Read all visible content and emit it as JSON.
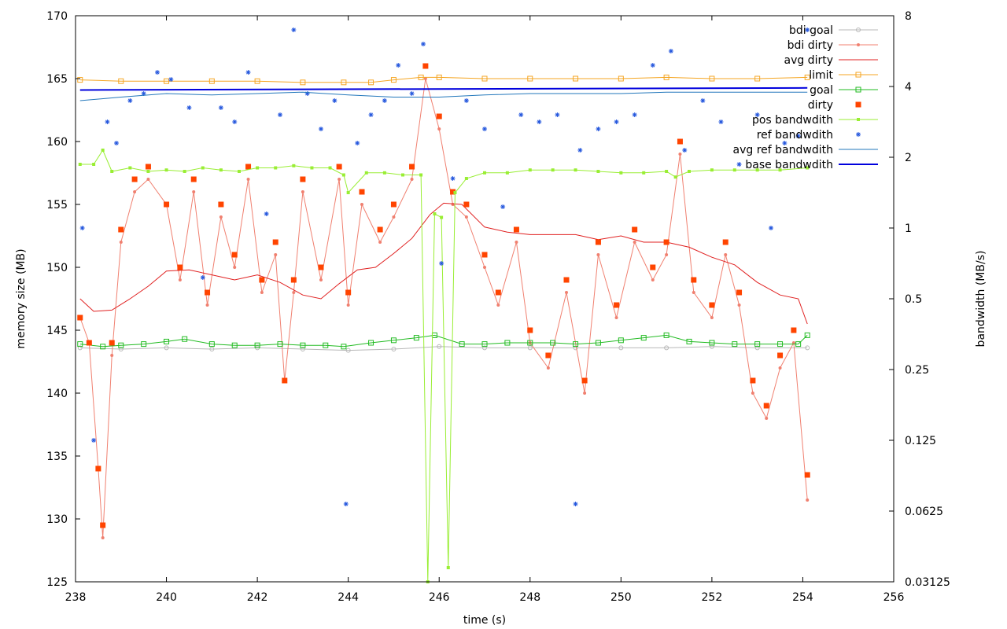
{
  "chart_data": {
    "type": "line",
    "xlabel": "time (s)",
    "ylabel": "memory size (MB)",
    "y2label": "bandwidth (MB/s)",
    "xlim": [
      238,
      256
    ],
    "ylim": [
      125,
      170
    ],
    "y2lim_log2": [
      -5,
      3
    ],
    "x_ticks": [
      238,
      240,
      242,
      244,
      246,
      248,
      250,
      252,
      254,
      256
    ],
    "y_ticks": [
      125,
      130,
      135,
      140,
      145,
      150,
      155,
      160,
      165,
      170
    ],
    "y2_ticks": [
      {
        "value_log2": -5,
        "label": "0.03125"
      },
      {
        "value_log2": -4,
        "label": "0.0625"
      },
      {
        "value_log2": -3,
        "label": "0.125"
      },
      {
        "value_log2": -2,
        "label": "0.25"
      },
      {
        "value_log2": -1,
        "label": "0.5"
      },
      {
        "value_log2": 0,
        "label": "1"
      },
      {
        "value_log2": 1,
        "label": "2"
      },
      {
        "value_log2": 2,
        "label": "4"
      },
      {
        "value_log2": 3,
        "label": "8"
      }
    ],
    "legend_position": "top-right",
    "series": [
      {
        "name": "bdi goal",
        "axis": "y",
        "style": "line-circle",
        "color": "#b8b8b8",
        "x": [
          238.1,
          239,
          240,
          241,
          242,
          243,
          244,
          245,
          246,
          247,
          248,
          249,
          250,
          251,
          252,
          253,
          254.1
        ],
        "y": [
          143.6,
          143.5,
          143.6,
          143.5,
          143.6,
          143.5,
          143.4,
          143.5,
          143.7,
          143.6,
          143.6,
          143.6,
          143.6,
          143.6,
          143.7,
          143.6,
          143.6
        ]
      },
      {
        "name": "bdi dirty",
        "axis": "y",
        "style": "line-dot",
        "color": "#f08070",
        "x": [
          238.1,
          238.3,
          238.5,
          238.6,
          238.8,
          239,
          239.3,
          239.6,
          240,
          240.3,
          240.6,
          240.9,
          241.2,
          241.5,
          241.8,
          242.1,
          242.4,
          242.6,
          242.8,
          243,
          243.4,
          243.8,
          244,
          244.3,
          244.7,
          245,
          245.4,
          245.7,
          246,
          246.3,
          246.6,
          247,
          247.3,
          247.7,
          248,
          248.4,
          248.8,
          249.2,
          249.5,
          249.9,
          250.3,
          250.7,
          251,
          251.3,
          251.6,
          252,
          252.3,
          252.6,
          252.9,
          253.2,
          253.5,
          253.8,
          254.1
        ],
        "y": [
          146,
          144,
          134,
          128.5,
          143,
          152,
          156,
          157,
          155,
          149,
          156,
          147,
          154,
          150,
          157,
          148,
          151,
          141,
          148,
          156,
          149,
          157,
          147,
          155,
          152,
          154,
          157,
          165,
          161,
          155,
          154,
          150,
          147,
          152,
          144,
          142,
          148,
          140,
          151,
          146,
          152,
          149,
          151,
          159,
          148,
          146,
          151,
          147,
          140,
          138,
          142,
          144,
          131.5
        ]
      },
      {
        "name": "avg dirty",
        "axis": "y",
        "style": "line",
        "color": "#e02020",
        "x": [
          238.1,
          238.4,
          238.8,
          239.2,
          239.6,
          240,
          240.5,
          241,
          241.5,
          242,
          242.5,
          243,
          243.4,
          243.8,
          244.2,
          244.6,
          245,
          245.4,
          245.8,
          246.1,
          246.5,
          247,
          247.5,
          248,
          248.5,
          249,
          249.5,
          250,
          250.5,
          251,
          251.5,
          252,
          252.5,
          253,
          253.5,
          253.9,
          254.1
        ],
        "y": [
          147.5,
          146.5,
          146.6,
          147.5,
          148.5,
          149.7,
          149.8,
          149.4,
          149.0,
          149.4,
          148.8,
          147.8,
          147.5,
          148.7,
          149.8,
          150.0,
          151.1,
          152.3,
          154.2,
          155.1,
          155.0,
          153.2,
          152.8,
          152.6,
          152.6,
          152.6,
          152.2,
          152.5,
          152.0,
          152.0,
          151.6,
          150.8,
          150.2,
          148.8,
          147.8,
          147.5,
          145.5
        ]
      },
      {
        "name": "limit",
        "axis": "y",
        "style": "line-square-open",
        "color": "#f5a623",
        "x": [
          238.1,
          239,
          240,
          241,
          242,
          243,
          243.9,
          244.5,
          245,
          245.6,
          246,
          247,
          248,
          249,
          250,
          251,
          252,
          253,
          254.1
        ],
        "y": [
          164.9,
          164.8,
          164.8,
          164.8,
          164.8,
          164.7,
          164.7,
          164.7,
          164.9,
          165.1,
          165.1,
          165.0,
          165.0,
          165.0,
          165.0,
          165.1,
          165.0,
          165.0,
          165.1
        ]
      },
      {
        "name": "goal",
        "axis": "y",
        "style": "line-square-open",
        "color": "#22bb22",
        "x": [
          238.1,
          238.6,
          239,
          239.5,
          240,
          240.4,
          241,
          241.5,
          242,
          242.5,
          243,
          243.5,
          243.9,
          244.5,
          245,
          245.5,
          245.9,
          246.5,
          247,
          247.5,
          248,
          248.5,
          249,
          249.5,
          250,
          250.5,
          251,
          251.5,
          252,
          252.5,
          253,
          253.5,
          253.9,
          254.1
        ],
        "y": [
          143.9,
          143.7,
          143.8,
          143.9,
          144.1,
          144.3,
          143.9,
          143.8,
          143.8,
          143.9,
          143.8,
          143.8,
          143.7,
          144.0,
          144.2,
          144.4,
          144.6,
          143.9,
          143.9,
          144.0,
          144.0,
          144.0,
          143.9,
          144.0,
          144.2,
          144.4,
          144.6,
          144.1,
          144.0,
          143.9,
          143.9,
          143.9,
          143.9,
          144.6
        ]
      },
      {
        "name": "dirty",
        "axis": "y",
        "style": "square-filled",
        "color": "#ff4400",
        "x": [
          238.1,
          238.3,
          238.5,
          238.6,
          238.8,
          239,
          239.3,
          239.6,
          240,
          240.3,
          240.6,
          240.9,
          241.2,
          241.5,
          241.8,
          242.1,
          242.4,
          242.6,
          242.8,
          243,
          243.4,
          243.8,
          244,
          244.3,
          244.7,
          245,
          245.4,
          245.7,
          246,
          246.3,
          246.6,
          247,
          247.3,
          247.7,
          248,
          248.4,
          248.8,
          249.2,
          249.5,
          249.9,
          250.3,
          250.7,
          251,
          251.3,
          251.6,
          252,
          252.3,
          252.6,
          252.9,
          253.2,
          253.5,
          253.8,
          254.1
        ],
        "y": [
          146,
          144,
          134,
          129.5,
          144,
          153,
          157,
          158,
          155,
          150,
          157,
          148,
          155,
          151,
          158,
          149,
          152,
          141,
          149,
          157,
          150,
          158,
          148,
          156,
          153,
          155,
          158,
          166,
          162,
          156,
          155,
          151,
          148,
          153,
          145,
          143,
          149,
          141,
          152,
          147,
          153,
          150,
          152,
          160,
          149,
          147,
          152,
          148,
          141,
          139,
          143,
          145,
          133.5
        ]
      },
      {
        "name": "pos bandwdith",
        "axis": "y2",
        "style": "line-square-small",
        "color": "#99ee33",
        "x": [
          238.1,
          238.4,
          238.6,
          238.8,
          239.2,
          239.6,
          240,
          240.4,
          240.8,
          241.2,
          241.6,
          242,
          242.4,
          242.8,
          243.2,
          243.6,
          243.9,
          244.0,
          244.4,
          244.8,
          245.2,
          245.6,
          245.75,
          245.9,
          246.05,
          246.2,
          246.35,
          246.6,
          247,
          247.5,
          248,
          248.5,
          249,
          249.5,
          250,
          250.5,
          251,
          251.2,
          251.5,
          252,
          252.5,
          253,
          253.5,
          254.1
        ],
        "y_log2": [
          0.9,
          0.9,
          1.1,
          0.8,
          0.85,
          0.8,
          0.82,
          0.8,
          0.85,
          0.82,
          0.8,
          0.85,
          0.85,
          0.88,
          0.85,
          0.85,
          0.75,
          0.5,
          0.78,
          0.78,
          0.75,
          0.75,
          -5,
          0.2,
          0.15,
          -4.8,
          0.5,
          0.7,
          0.78,
          0.78,
          0.82,
          0.82,
          0.82,
          0.8,
          0.78,
          0.78,
          0.8,
          0.72,
          0.8,
          0.82,
          0.82,
          0.82,
          0.82,
          0.85
        ]
      },
      {
        "name": "ref bandwdith",
        "axis": "y2",
        "style": "star",
        "color": "#2255dd",
        "x": [
          238.15,
          238.4,
          238.7,
          238.9,
          239.2,
          239.5,
          239.8,
          240.1,
          240.5,
          240.8,
          241.2,
          241.5,
          241.8,
          242.2,
          242.5,
          242.8,
          243.1,
          243.4,
          243.7,
          243.95,
          244.2,
          244.5,
          244.8,
          245.1,
          245.4,
          245.65,
          245.85,
          246.05,
          246.3,
          246.6,
          247,
          247.4,
          247.8,
          248.2,
          248.6,
          249.0,
          249.1,
          249.5,
          249.9,
          250.3,
          250.7,
          251.1,
          251.4,
          251.8,
          252.2,
          252.6,
          253.0,
          253.3,
          253.6,
          253.9,
          254.1
        ],
        "y_log2": [
          0,
          -3,
          1.5,
          1.2,
          1.8,
          1.9,
          2.2,
          2.1,
          1.7,
          -0.7,
          1.7,
          1.5,
          2.2,
          0.2,
          1.6,
          2.8,
          1.9,
          1.4,
          1.8,
          -3.9,
          1.2,
          1.6,
          1.8,
          2.3,
          1.9,
          2.6,
          3.9,
          -0.5,
          0.7,
          1.8,
          1.4,
          0.3,
          1.6,
          1.5,
          1.6,
          -3.9,
          1.1,
          1.4,
          1.5,
          1.6,
          2.3,
          2.5,
          1.1,
          1.8,
          1.5,
          0.9,
          1.6,
          0,
          1.2,
          1.3,
          2.8
        ]
      },
      {
        "name": "avg ref bandwdith",
        "axis": "y2",
        "style": "line",
        "color": "#2277bb",
        "x": [
          238.1,
          239,
          240,
          241,
          242,
          243,
          244,
          245,
          246,
          247,
          248,
          249,
          250,
          251,
          252,
          253,
          254.1
        ],
        "y_log2": [
          1.8,
          1.85,
          1.9,
          1.88,
          1.9,
          1.92,
          1.88,
          1.85,
          1.85,
          1.88,
          1.9,
          1.9,
          1.9,
          1.92,
          1.92,
          1.92,
          1.92
        ]
      },
      {
        "name": "base bandwdith",
        "axis": "y2",
        "style": "line-thick",
        "color": "#0000dd",
        "x": [
          238.1,
          254.1
        ],
        "y_log2": [
          1.95,
          1.98
        ]
      }
    ]
  }
}
